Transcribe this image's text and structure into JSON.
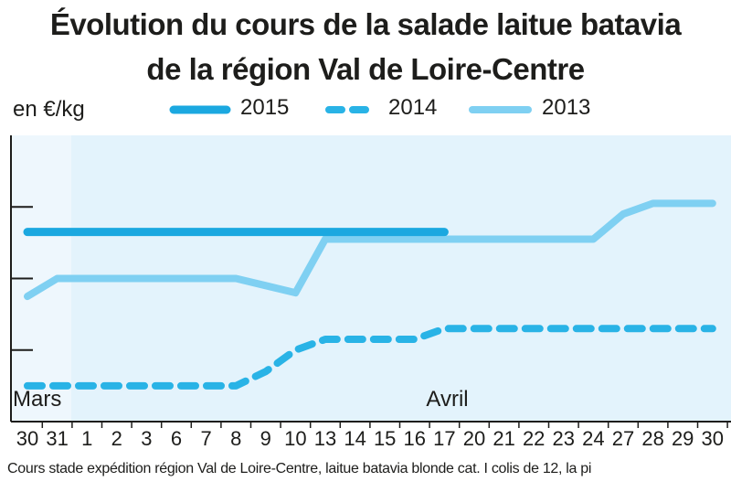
{
  "chart_data": {
    "type": "line",
    "title": "Évolution du cours de la salade laitue batavia",
    "subtitle": "de la région Val de Loire-Centre",
    "ylabel": "en €/kg",
    "x": [
      "30",
      "31",
      "1",
      "2",
      "3",
      "6",
      "7",
      "8",
      "9",
      "10",
      "13",
      "14",
      "15",
      "16",
      "17",
      "20",
      "21",
      "22",
      "23",
      "24",
      "27",
      "28",
      "29",
      "30"
    ],
    "month_labels": [
      {
        "text": "Mars",
        "at_index": 0
      },
      {
        "text": "Avril",
        "at_index": 14
      }
    ],
    "series": [
      {
        "name": "2015",
        "style": "solid-thick",
        "color": "#1ba8e0",
        "values": [
          3.65,
          3.65,
          3.65,
          3.65,
          3.65,
          3.65,
          3.65,
          3.65,
          3.65,
          3.65,
          3.65,
          3.65,
          3.65,
          3.65,
          3.65,
          null,
          null,
          null,
          null,
          null,
          null,
          null,
          null,
          null
        ]
      },
      {
        "name": "2014",
        "style": "dashed",
        "color": "#29b3e6",
        "values": [
          1.5,
          1.5,
          1.5,
          1.5,
          1.5,
          1.5,
          1.5,
          1.5,
          1.7,
          2.0,
          2.15,
          2.15,
          2.15,
          2.15,
          2.3,
          2.3,
          2.3,
          2.3,
          2.3,
          2.3,
          2.3,
          2.3,
          2.3,
          2.3
        ]
      },
      {
        "name": "2013",
        "style": "solid-light",
        "color": "#7fd0f2",
        "values": [
          2.75,
          3.0,
          3.0,
          3.0,
          3.0,
          3.0,
          3.0,
          3.0,
          2.9,
          2.8,
          3.55,
          3.55,
          3.55,
          3.55,
          3.55,
          3.55,
          3.55,
          3.55,
          3.55,
          3.55,
          3.9,
          4.05,
          4.05,
          4.05
        ]
      }
    ],
    "ylim": [
      1,
      5
    ],
    "grid": false
  },
  "legend": {
    "items": [
      {
        "label": "2015"
      },
      {
        "label": "2014"
      },
      {
        "label": "2013"
      }
    ]
  },
  "footnote": "Cours stade expédition région Val de Loire-Centre, laitue batavia blonde cat. I colis de 12, la pi",
  "colors": {
    "plot_bg": "#e3f3fc",
    "band_bg": "#eef7fd",
    "axis": "#1d1d1b"
  }
}
